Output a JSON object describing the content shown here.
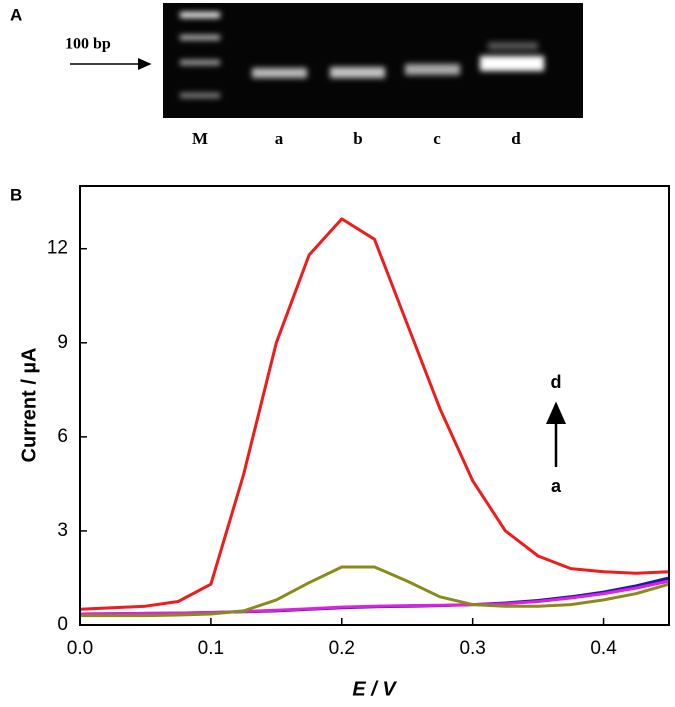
{
  "gel": {
    "panel_label": "A",
    "marker_label": "100 bp",
    "lanes": [
      "M",
      "a",
      "b",
      "c",
      "d"
    ]
  },
  "chart_data": {
    "type": "line",
    "panel_label": "B",
    "x_label": "E / V",
    "y_label": "Current / µA",
    "x": [
      0,
      0.025,
      0.05,
      0.075,
      0.1,
      0.125,
      0.15,
      0.175,
      0.2,
      0.225,
      0.25,
      0.275,
      0.3,
      0.325,
      0.35,
      0.375,
      0.4,
      0.425,
      0.45
    ],
    "series": [
      {
        "color": "#1a1aa6",
        "values": [
          0.35,
          0.36,
          0.37,
          0.38,
          0.4,
          0.42,
          0.45,
          0.5,
          0.55,
          0.58,
          0.6,
          0.62,
          0.65,
          0.7,
          0.78,
          0.9,
          1.05,
          1.25,
          1.5
        ]
      },
      {
        "color": "#e020e0",
        "values": [
          0.35,
          0.36,
          0.37,
          0.38,
          0.4,
          0.43,
          0.47,
          0.52,
          0.57,
          0.6,
          0.62,
          0.63,
          0.65,
          0.68,
          0.75,
          0.86,
          1.0,
          1.18,
          1.4
        ]
      },
      {
        "color": "#8a8a1a",
        "values": [
          0.3,
          0.3,
          0.3,
          0.32,
          0.35,
          0.45,
          0.8,
          1.35,
          1.85,
          1.85,
          1.4,
          0.9,
          0.65,
          0.6,
          0.6,
          0.65,
          0.8,
          1.0,
          1.3
        ]
      },
      {
        "color": "#ee1c1c",
        "values": [
          0.5,
          0.55,
          0.6,
          0.75,
          1.3,
          4.8,
          9.0,
          11.8,
          12.95,
          12.3,
          9.6,
          6.9,
          4.6,
          3.0,
          2.2,
          1.8,
          1.7,
          1.65,
          1.7
        ]
      }
    ],
    "xlim": [
      0,
      0.45
    ],
    "xticks": [
      {
        "value": 0,
        "label": "0.0"
      },
      {
        "value": 0.1,
        "label": "0.1"
      },
      {
        "value": 0.2,
        "label": "0.2"
      },
      {
        "value": 0.3,
        "label": "0.3"
      },
      {
        "value": 0.4,
        "label": "0.4"
      }
    ],
    "ylim": [
      0,
      14
    ],
    "yticks": [
      0,
      3,
      6,
      9,
      12
    ],
    "annotations": {
      "top": "d",
      "bottom": "a"
    }
  }
}
